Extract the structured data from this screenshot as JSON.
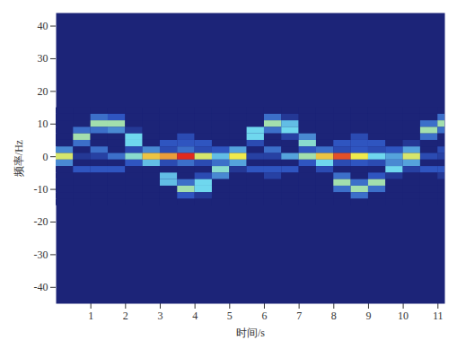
{
  "chart_data": {
    "type": "heatmap",
    "x_label": "时间/s",
    "y_label": "频率/Hz",
    "xlim": [
      0,
      11.2
    ],
    "ylim": [
      -45,
      44
    ],
    "xticks": [
      1,
      2,
      3,
      4,
      5,
      6,
      7,
      8,
      9,
      10,
      11
    ],
    "yticks": [
      -40,
      -30,
      -20,
      -10,
      0,
      10,
      20,
      30,
      40
    ],
    "color_range": [
      0,
      1
    ],
    "time": [
      0.25,
      0.75,
      1.25,
      1.75,
      2.25,
      2.75,
      3.25,
      3.75,
      4.25,
      4.75,
      5.25,
      5.75,
      6.25,
      6.75,
      7.25,
      7.75,
      8.25,
      8.75,
      9.25,
      9.75,
      10.25,
      10.75,
      11.25
    ],
    "frequency": [
      14,
      12,
      10,
      8,
      6,
      4,
      2,
      0,
      -2,
      -4,
      -6,
      -8,
      -10,
      -12,
      -14
    ],
    "power": [
      [
        0,
        0,
        0,
        0,
        0,
        0,
        0.35,
        0.7,
        0.35,
        0,
        0,
        0,
        0,
        0,
        0
      ],
      [
        0,
        0,
        0,
        0.3,
        0.6,
        0.3,
        0,
        0.1,
        0,
        0.25,
        0,
        0,
        0,
        0,
        0
      ],
      [
        0,
        0.3,
        0.6,
        0.3,
        0,
        0,
        0.3,
        0.15,
        0,
        0.25,
        0,
        0,
        0,
        0,
        0
      ],
      [
        0,
        0.25,
        0.6,
        0.35,
        0,
        0,
        0,
        0.3,
        0,
        0.25,
        0,
        0,
        0,
        0,
        0
      ],
      [
        0,
        0,
        0,
        0.1,
        0.5,
        0.5,
        0.2,
        0.55,
        0.25,
        0,
        0,
        0,
        0,
        0,
        0
      ],
      [
        0,
        0,
        0,
        0,
        0,
        0,
        0.35,
        0.8,
        0.45,
        0,
        0,
        0,
        0,
        0,
        0
      ],
      [
        0,
        0,
        0,
        0,
        0,
        0.25,
        0.2,
        0.85,
        0.2,
        0,
        0.45,
        0.45,
        0,
        0,
        0
      ],
      [
        0,
        0,
        0,
        0,
        0.2,
        0.25,
        0.3,
        1.0,
        0.3,
        0,
        0,
        0.3,
        0.6,
        0.25,
        0
      ],
      [
        0,
        0,
        0,
        0,
        0,
        0.25,
        0.2,
        0.7,
        0.2,
        0,
        0.2,
        0.5,
        0.5,
        0.1,
        0
      ],
      [
        0,
        0,
        0,
        0,
        0,
        0,
        0.25,
        0.45,
        0.3,
        0.55,
        0.35,
        0,
        0,
        0,
        0
      ],
      [
        0,
        0,
        0,
        0,
        0,
        0,
        0.4,
        0.75,
        0.4,
        0.1,
        0,
        0,
        0,
        0,
        0
      ],
      [
        0,
        0,
        0,
        0.5,
        0.5,
        0.2,
        0,
        0.15,
        0,
        0.25,
        0,
        0,
        0,
        0,
        0
      ],
      [
        0,
        0.3,
        0.6,
        0.3,
        0,
        0,
        0.3,
        0.15,
        0,
        0.25,
        0.15,
        0,
        0,
        0,
        0
      ],
      [
        0,
        0.1,
        0.45,
        0.5,
        0.15,
        0,
        0,
        0.4,
        0,
        0.25,
        0,
        0,
        0,
        0,
        0
      ],
      [
        0,
        0,
        0,
        0,
        0.35,
        0.55,
        0.25,
        0.6,
        0.25,
        0,
        0,
        0,
        0,
        0,
        0
      ],
      [
        0,
        0,
        0,
        0,
        0,
        0,
        0.3,
        0.8,
        0.5,
        0.2,
        0,
        0,
        0,
        0,
        0
      ],
      [
        0,
        0,
        0,
        0,
        0,
        0.25,
        0.2,
        0.95,
        0.2,
        0,
        0.3,
        0.6,
        0.3,
        0,
        0
      ],
      [
        0,
        0,
        0,
        0,
        0.2,
        0.25,
        0.25,
        0.75,
        0.25,
        0,
        0,
        0.3,
        0.6,
        0.3,
        0
      ],
      [
        0,
        0,
        0,
        0,
        0,
        0.25,
        0.2,
        0.5,
        0.2,
        0,
        0.25,
        0.6,
        0.3,
        0,
        0
      ],
      [
        0,
        0,
        0,
        0,
        0,
        0,
        0.25,
        0.4,
        0.35,
        0.5,
        0.1,
        0,
        0,
        0,
        0
      ],
      [
        0,
        0,
        0,
        0,
        0,
        0.1,
        0.4,
        0.7,
        0.4,
        0.15,
        0,
        0,
        0,
        0,
        0
      ],
      [
        0,
        0,
        0.3,
        0.6,
        0.3,
        0,
        0,
        0.2,
        0,
        0.25,
        0,
        0,
        0,
        0,
        0
      ],
      [
        0,
        0.3,
        0.6,
        0.3,
        0,
        0,
        0.2,
        0.15,
        0,
        0.25,
        0.1,
        0,
        0,
        0,
        0
      ]
    ]
  }
}
